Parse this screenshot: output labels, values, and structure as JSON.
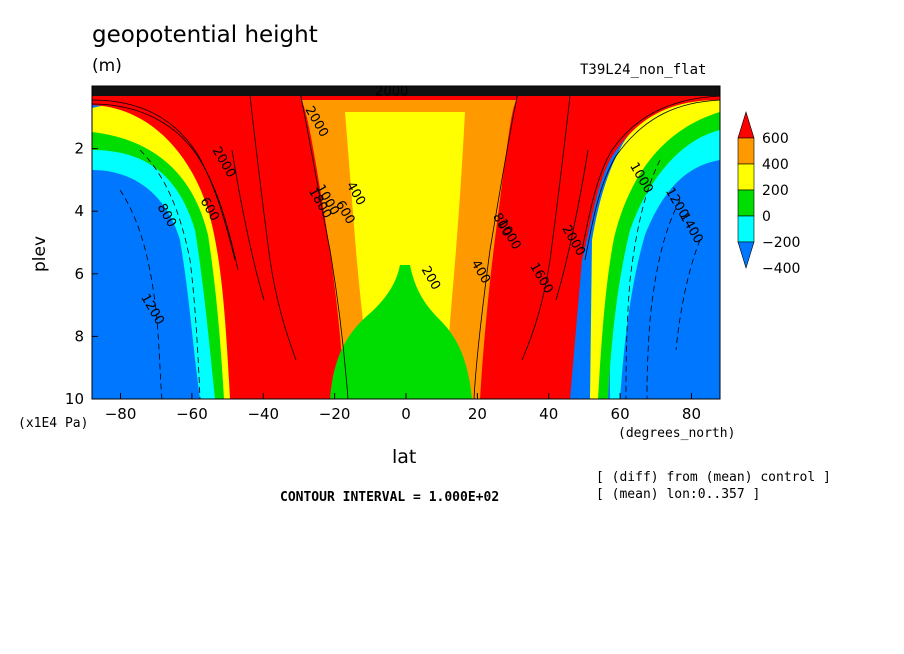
{
  "chart_data": {
    "type": "heatmap",
    "title": "geopotential height",
    "units": "(m)",
    "run_label": "T39L24_non_flat",
    "xlabel": "lat",
    "ylabel": "plev",
    "x_units": "(degrees_north)",
    "y_units": "(x1E4 Pa)",
    "xlim": [
      -88,
      88
    ],
    "ylim": [
      10,
      0
    ],
    "x_ticks": [
      "-80",
      "-60",
      "-40",
      "-20",
      "0",
      "20",
      "40",
      "60",
      "80"
    ],
    "y_ticks": [
      "2",
      "4",
      "6",
      "8",
      "10"
    ],
    "contour_interval_text": "CONTOUR INTERVAL = 1.000E+02",
    "notes": [
      "[ (diff) from (mean) control ]",
      "[ (mean) lon:0..357 ]"
    ],
    "colorbar": {
      "labels": [
        "600",
        "400",
        "200",
        "0",
        "−200",
        "−400"
      ],
      "colors": [
        "#ff0000",
        "#ff9900",
        "#ffff00",
        "#00dd00",
        "#00ffff",
        "#0077ff"
      ]
    },
    "contour_labels": [
      {
        "text": "2000",
        "x": -4,
        "y": 0.05
      },
      {
        "text": "2000",
        "x": -52,
        "y": 2.5
      },
      {
        "text": "600",
        "x": -56,
        "y": 4.0
      },
      {
        "text": "800",
        "x": -68,
        "y": 4.2
      },
      {
        "text": "1200",
        "x": -72,
        "y": 7.2
      },
      {
        "text": "2000",
        "x": -26,
        "y": 1.2
      },
      {
        "text": "1800",
        "x": -25,
        "y": 3.8
      },
      {
        "text": "1000",
        "x": -23,
        "y": 3.7
      },
      {
        "text": "600",
        "x": -18,
        "y": 4.1
      },
      {
        "text": "400",
        "x": -15,
        "y": 3.5
      },
      {
        "text": "200",
        "x": 6,
        "y": 6.2
      },
      {
        "text": "400",
        "x": 20,
        "y": 6.0
      },
      {
        "text": "800",
        "x": 26,
        "y": 4.5
      },
      {
        "text": "1000",
        "x": 28,
        "y": 4.8
      },
      {
        "text": "1600",
        "x": 37,
        "y": 6.2
      },
      {
        "text": "2000",
        "x": 46,
        "y": 5.0
      },
      {
        "text": "1000",
        "x": 65,
        "y": 3.0
      },
      {
        "text": "1200",
        "x": 75,
        "y": 3.8
      },
      {
        "text": "1400",
        "x": 79,
        "y": 4.6
      }
    ]
  }
}
